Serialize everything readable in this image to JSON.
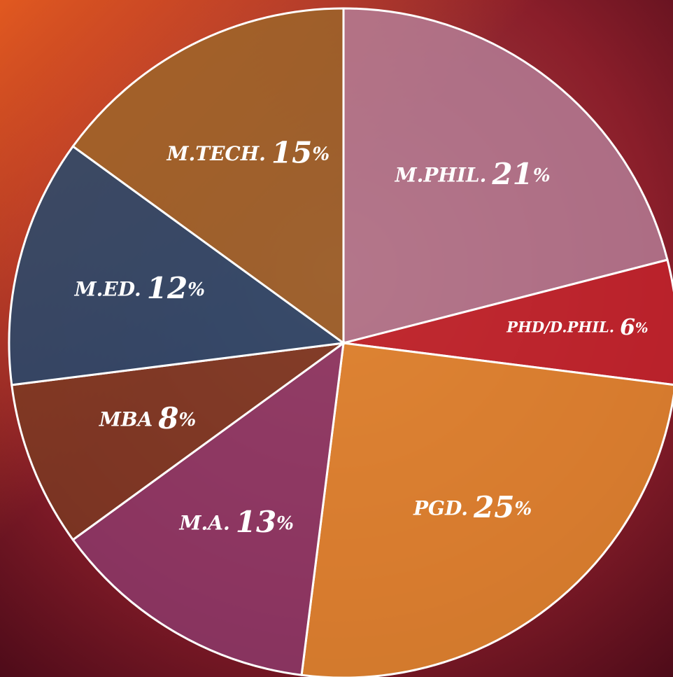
{
  "chart_data": {
    "type": "pie",
    "categories": [
      "M.PHIL.",
      "PHD/D.PHIL.",
      "PGD.",
      "M.A.",
      "MBA",
      "M.ED.",
      "M.TECH."
    ],
    "values": [
      21,
      6,
      25,
      13,
      8,
      12,
      15
    ],
    "value_labels": [
      "21%",
      "6%",
      "25%",
      "13%",
      "8%",
      "12%",
      "15%"
    ],
    "colors": [
      "#b47f98",
      "#c4232c",
      "#e8902f",
      "#8c3b6c",
      "#7a3b22",
      "#1f4b70",
      "#9b6629"
    ]
  }
}
